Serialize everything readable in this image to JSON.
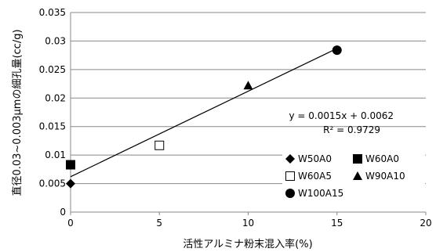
{
  "chart_data": {
    "type": "scatter",
    "xlabel": "活性アルミナ粉末混入率(%)",
    "ylabel": "直径0.03~0.003μmの細孔量(cc/g)",
    "xlim": [
      0,
      20
    ],
    "ylim": [
      0,
      0.035
    ],
    "x_ticks": [
      "0",
      "5",
      "10",
      "15",
      "20"
    ],
    "y_ticks": [
      "0",
      "0.005",
      "0.01",
      "0.015",
      "0.02",
      "0.025",
      "0.03",
      "0.035"
    ],
    "grid": "horizontal",
    "legend_position": "bottom-right",
    "series": [
      {
        "name": "W50A0",
        "marker": "diamond",
        "x": [
          0
        ],
        "y": [
          0.005
        ]
      },
      {
        "name": "W60A0",
        "marker": "square-filled",
        "x": [
          0
        ],
        "y": [
          0.0083
        ]
      },
      {
        "name": "W60A5",
        "marker": "square-open",
        "x": [
          5
        ],
        "y": [
          0.0117
        ]
      },
      {
        "name": "W90A10",
        "marker": "triangle",
        "x": [
          10
        ],
        "y": [
          0.0222
        ]
      },
      {
        "name": "W100A15",
        "marker": "circle",
        "x": [
          15
        ],
        "y": [
          0.0284
        ]
      }
    ],
    "trendline": {
      "equation": "y = 0.0015x + 0.0062",
      "r_squared": "R² = 0.9729",
      "x": [
        0,
        15
      ],
      "y": [
        0.0062,
        0.0287
      ]
    }
  }
}
